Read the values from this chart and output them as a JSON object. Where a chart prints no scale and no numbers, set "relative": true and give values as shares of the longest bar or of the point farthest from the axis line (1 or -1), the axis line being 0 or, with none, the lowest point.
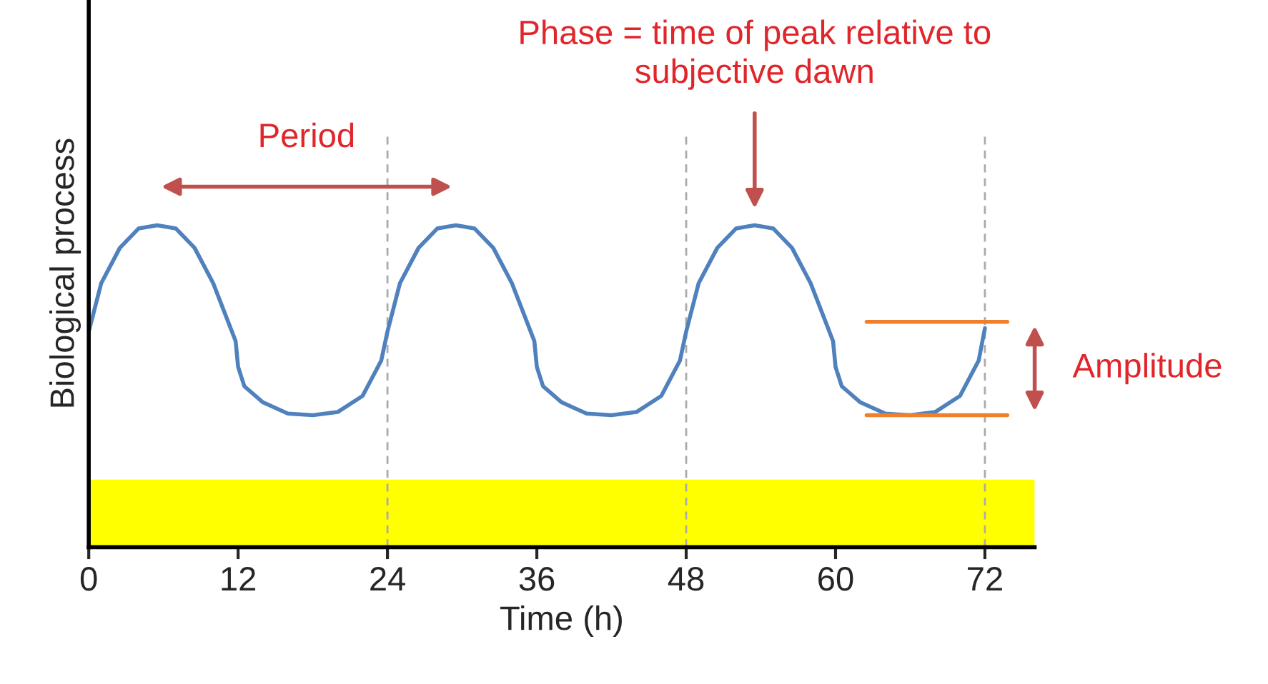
{
  "chart_data": {
    "type": "line",
    "relative": true,
    "xlabel": "Time (h)",
    "ylabel": "Biological process",
    "xlim": [
      0,
      76
    ],
    "xticks": [
      0,
      12,
      24,
      36,
      48,
      60,
      72
    ],
    "tick_labels": "x",
    "grid": false,
    "legend": false,
    "marker": "none",
    "line_style": "solid",
    "series": [
      {
        "color": "#4f81bd",
        "x": [
          0,
          1,
          2.5,
          4,
          5.5,
          7,
          8.5,
          10,
          11,
          11.8,
          12,
          12.5,
          14,
          16,
          18,
          20,
          22,
          23.5,
          24,
          25,
          26.5,
          28,
          29.5,
          31,
          32.5,
          34,
          35,
          35.8,
          36,
          36.5,
          38,
          40,
          42,
          44,
          46,
          47.5,
          48,
          49,
          50.5,
          52,
          53.5,
          55,
          56.5,
          58,
          59,
          59.8,
          60,
          60.5,
          62,
          64,
          66,
          68,
          70,
          71.5,
          72
        ],
        "values": [
          0.67,
          0.82,
          0.93,
          0.99,
          1.0,
          0.99,
          0.93,
          0.82,
          0.72,
          0.64,
          0.56,
          0.5,
          0.45,
          0.415,
          0.41,
          0.42,
          0.47,
          0.58,
          0.67,
          0.82,
          0.93,
          0.99,
          1.0,
          0.99,
          0.93,
          0.82,
          0.72,
          0.64,
          0.56,
          0.5,
          0.45,
          0.415,
          0.41,
          0.42,
          0.47,
          0.58,
          0.67,
          0.82,
          0.93,
          0.99,
          1.0,
          0.99,
          0.93,
          0.82,
          0.72,
          0.64,
          0.56,
          0.5,
          0.45,
          0.415,
          0.41,
          0.42,
          0.47,
          0.58,
          0.68
        ]
      },
      {
        "type": "line",
        "color": "#f07f2c",
        "x": [
          62.5,
          73.8
        ],
        "values": [
          0.7,
          0.7
        ]
      },
      {
        "type": "line",
        "color": "#f07f2c",
        "x": [
          62.5,
          73.8
        ],
        "values": [
          0.41,
          0.41
        ]
      }
    ],
    "bands": [
      {
        "axis": "y",
        "from": 0,
        "to": 0.21,
        "color": "#ffff00"
      }
    ],
    "ref_lines": [
      {
        "axis": "x",
        "value": 24,
        "color": "#aaaaaa",
        "line_style": "dashed"
      },
      {
        "axis": "x",
        "value": 48,
        "color": "#aaaaaa",
        "line_style": "dashed"
      },
      {
        "axis": "x",
        "value": 72,
        "color": "#aaaaaa",
        "line_style": "dashed"
      }
    ],
    "annotations": [
      "Period",
      "Phase = time of peak relative to\nsubjective dawn",
      "Amplitude"
    ]
  }
}
